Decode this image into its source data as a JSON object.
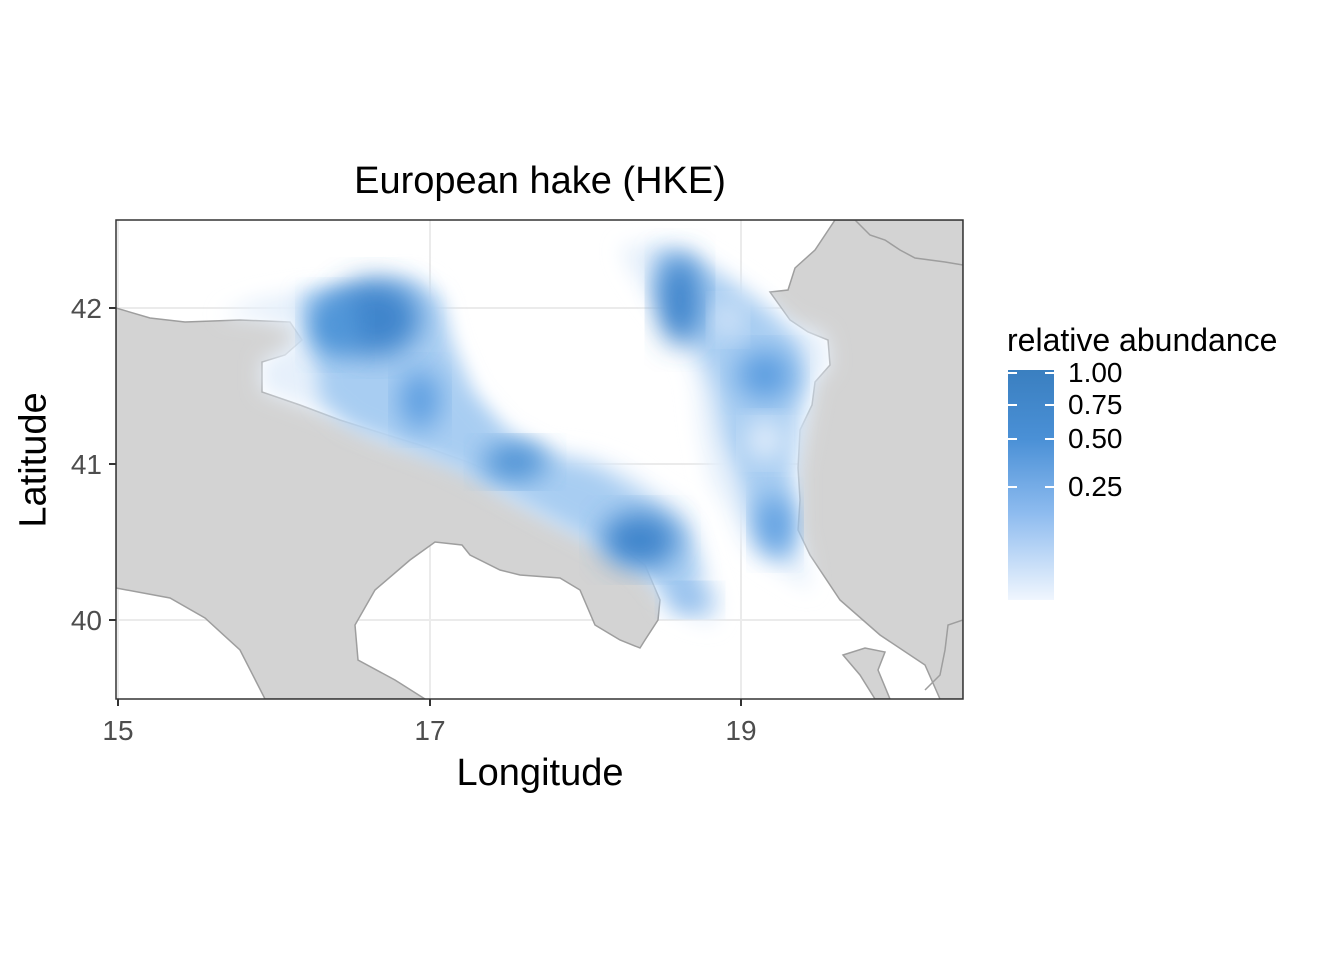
{
  "title": "European hake (HKE)",
  "x_axis": {
    "label": "Longitude",
    "ticks": [
      "15",
      "17",
      "19"
    ]
  },
  "y_axis": {
    "label": "Latitude",
    "ticks": [
      "40",
      "41",
      "42"
    ]
  },
  "legend": {
    "title": "relative abundance",
    "labels": [
      "1.00",
      "0.75",
      "0.50",
      "0.25"
    ],
    "color_high": "#3a7fc0",
    "color_low": "#f0f6fe"
  },
  "map": {
    "lon_range": [
      15,
      20.4
    ],
    "lat_range": [
      39.5,
      42.55
    ],
    "land_color": "#d3d3d3",
    "coast_color": "#9e9e9e",
    "grid_color": "#ebebeb"
  }
}
